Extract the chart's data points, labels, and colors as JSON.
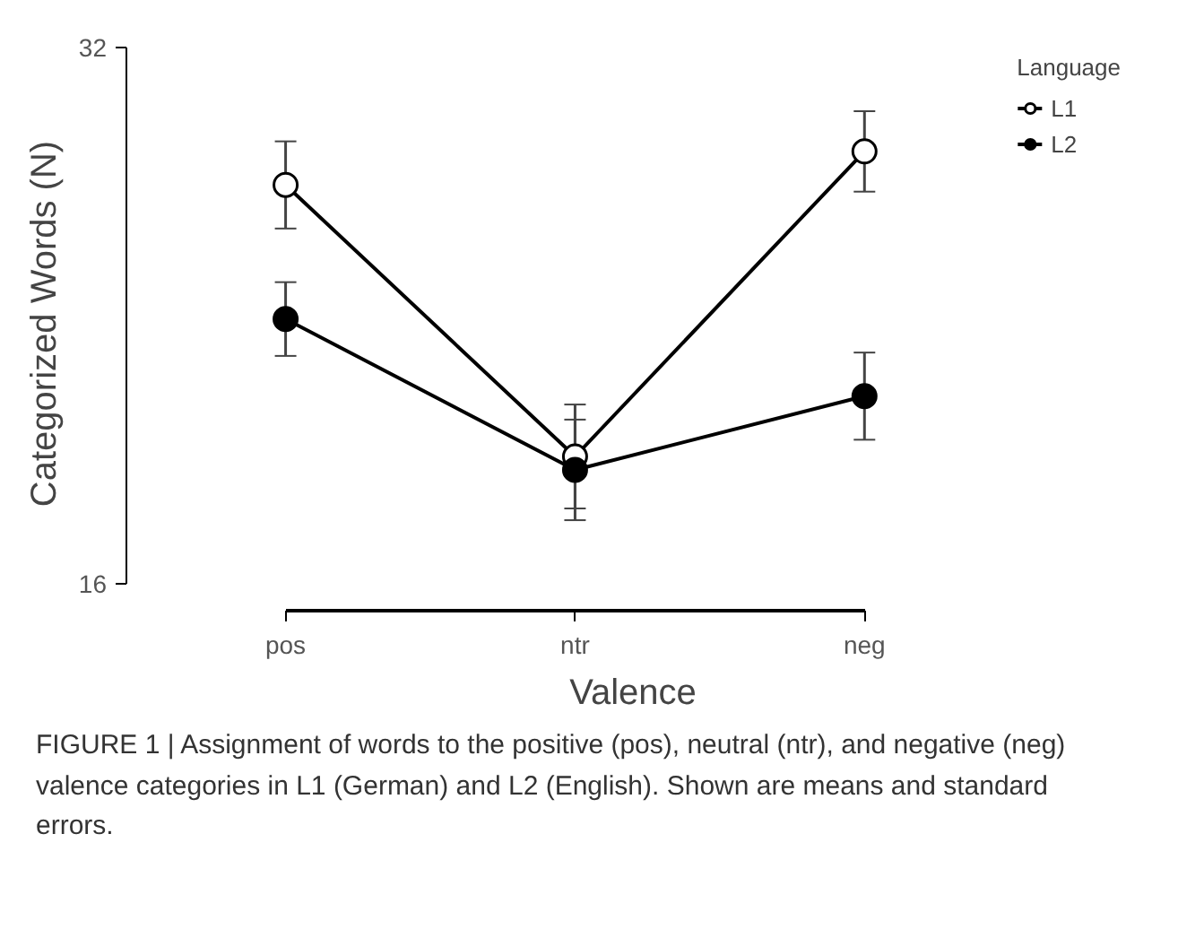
{
  "chart_data": {
    "type": "line",
    "xlabel": "Valence",
    "ylabel": "Categorized Words (N)",
    "legend_title": "Language",
    "categories": [
      "pos",
      "ntr",
      "neg"
    ],
    "series": [
      {
        "name": "L1",
        "color": "#000000",
        "colors": [
          "#ffffff",
          "#ffffff",
          "#ffffff"
        ],
        "values": [
          27.9,
          19.8,
          28.9
        ],
        "errors": [
          1.3,
          1.55,
          1.2
        ]
      },
      {
        "name": "L2",
        "color": "#000000",
        "values": [
          23.9,
          19.4,
          21.6
        ],
        "errors": [
          1.1,
          1.5,
          1.3
        ]
      }
    ],
    "ylim": [
      16,
      32
    ],
    "yticks": [
      16,
      32
    ],
    "grid": false,
    "legend": "top right",
    "marker": "circle",
    "line_style": "solid",
    "annotations": [
      "FIGURE 1 | Assignment of words to the positive (pos), neutral (ntr), and negative (neg) valence categories in L1 (German) and L2 (English). Shown are means and standard errors."
    ]
  }
}
